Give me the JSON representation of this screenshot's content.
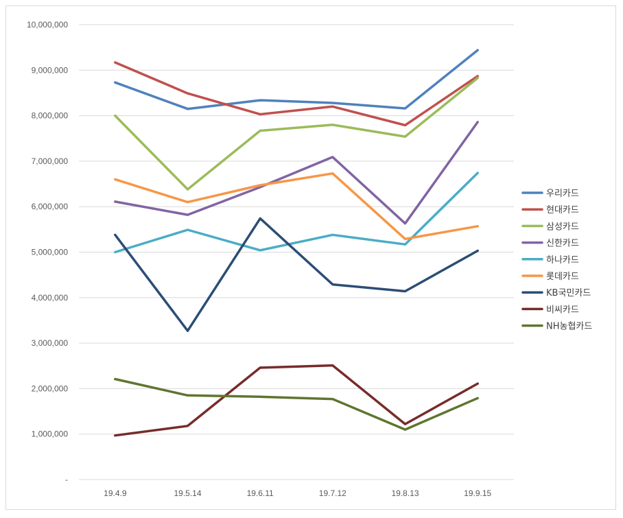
{
  "chart_data": {
    "type": "line",
    "title": "",
    "xlabel": "",
    "ylabel": "",
    "categories": [
      "19.4.9",
      "19.5.14",
      "19.6.11",
      "19.7.12",
      "19.8.13",
      "19.9.15"
    ],
    "ylim": [
      0,
      10000000
    ],
    "yticks": [
      0,
      1000000,
      2000000,
      3000000,
      4000000,
      5000000,
      6000000,
      7000000,
      8000000,
      9000000,
      10000000
    ],
    "ytick_labels": [
      "-",
      "1,000,000",
      "2,000,000",
      "3,000,000",
      "4,000,000",
      "5,000,000",
      "6,000,000",
      "7,000,000",
      "8,000,000",
      "9,000,000",
      "10,000,000"
    ],
    "grid": true,
    "legend_position": "right",
    "series": [
      {
        "name": "우리카드",
        "color": "#4f81bd",
        "values": [
          8730000,
          8150000,
          8340000,
          8280000,
          8160000,
          9440000
        ]
      },
      {
        "name": "현대카드",
        "color": "#c0504d",
        "values": [
          9170000,
          8490000,
          8030000,
          8200000,
          7790000,
          8870000
        ]
      },
      {
        "name": "삼성카드",
        "color": "#9bbb59",
        "values": [
          8000000,
          6380000,
          7670000,
          7800000,
          7540000,
          8830000
        ]
      },
      {
        "name": "신한카드",
        "color": "#8064a2",
        "values": [
          6110000,
          5820000,
          6430000,
          7090000,
          5630000,
          7860000
        ]
      },
      {
        "name": "하나카드",
        "color": "#4bacc6",
        "values": [
          5000000,
          5490000,
          5040000,
          5380000,
          5170000,
          6740000
        ]
      },
      {
        "name": "롯데카드",
        "color": "#f79646",
        "values": [
          6600000,
          6100000,
          6470000,
          6730000,
          5290000,
          5570000
        ]
      },
      {
        "name": "KB국민카드",
        "color": "#2c4d75",
        "values": [
          5380000,
          3270000,
          5740000,
          4290000,
          4140000,
          5030000
        ]
      },
      {
        "name": "비씨카드",
        "color": "#772c2a",
        "values": [
          970000,
          1180000,
          2460000,
          2510000,
          1220000,
          2110000
        ]
      },
      {
        "name": "NH농협카드",
        "color": "#5f7530",
        "values": [
          2210000,
          1850000,
          1820000,
          1770000,
          1100000,
          1790000
        ]
      }
    ]
  }
}
